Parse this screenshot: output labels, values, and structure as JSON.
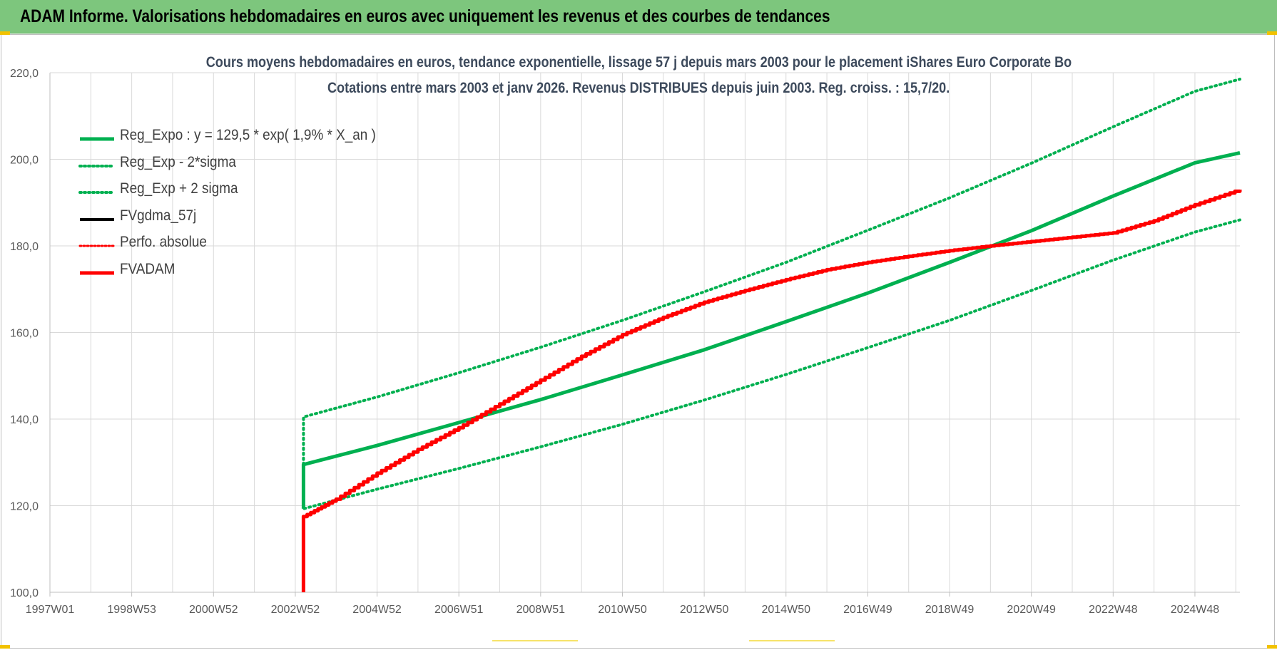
{
  "banner": {
    "title": "ADAM Informe. Valorisations hebdomadaires en euros avec uniquement les revenus et des courbes de tendances"
  },
  "chart_data": {
    "type": "line",
    "title": "Cours moyens hebdomadaires en euros, tendance exponentielle, lissage 57 j depuis mars 2003 pour le placement iShares Euro Corporate Bo",
    "subtitle": "Cotations entre mars 2003 et janv 2026. Revenus DISTRIBUES depuis juin 2003. Reg. croiss. : 15,7/20.",
    "xlabel": "",
    "ylabel": "",
    "ylim": [
      100,
      220
    ],
    "xlim": [
      1997.0,
      2026.1
    ],
    "y_ticks": [
      "100,0",
      "120,0",
      "140,0",
      "160,0",
      "180,0",
      "200,0",
      "220,0"
    ],
    "y_tick_values": [
      100,
      120,
      140,
      160,
      180,
      200,
      220
    ],
    "x_ticks": [
      "1997W01",
      "1998W53",
      "2000W52",
      "2002W52",
      "2004W52",
      "2006W51",
      "2008W51",
      "2010W50",
      "2012W50",
      "2014W50",
      "2016W49",
      "2018W49",
      "2020W49",
      "2022W48",
      "2024W48"
    ],
    "x_tick_values": [
      1997.0,
      1999.0,
      2001.0,
      2003.0,
      2005.0,
      2007.0,
      2009.0,
      2011.0,
      2013.0,
      2015.0,
      2017.0,
      2019.0,
      2021.0,
      2023.0,
      2025.0
    ],
    "grid": true,
    "legend_position": "top-left",
    "series": [
      {
        "name": "Reg_Expo : y = 129,5 * exp( 1,9% *  X_an )",
        "color": "#00b050",
        "style": "solid",
        "x": [
          2003.2,
          2005,
          2007,
          2009,
          2011,
          2013,
          2015,
          2017,
          2019,
          2021,
          2023,
          2025,
          2026.1
        ],
        "y": [
          129.5,
          133.9,
          139.2,
          144.5,
          150.2,
          156.0,
          162.5,
          169.1,
          176.2,
          183.5,
          191.5,
          199.2,
          201.5
        ]
      },
      {
        "name": "Reg_Exp - 2*sigma",
        "color": "#00b050",
        "style": "dotted",
        "x": [
          2003.2,
          2005,
          2007,
          2009,
          2011,
          2013,
          2015,
          2017,
          2019,
          2021,
          2023,
          2025,
          2026.1
        ],
        "y": [
          119.3,
          123.8,
          128.6,
          133.6,
          138.8,
          144.4,
          150.3,
          156.5,
          162.8,
          169.7,
          176.7,
          183.2,
          186.0
        ]
      },
      {
        "name": "Reg_Exp + 2 sigma",
        "color": "#00b050",
        "style": "dotted",
        "x": [
          2003.2,
          2005,
          2007,
          2009,
          2011,
          2013,
          2015,
          2017,
          2019,
          2021,
          2023,
          2025,
          2026.1
        ],
        "y": [
          140.5,
          145.1,
          150.7,
          156.6,
          162.8,
          169.4,
          176.2,
          183.6,
          191.1,
          199.1,
          207.5,
          215.7,
          218.5
        ]
      },
      {
        "name": "FVgdma_57j",
        "color": "#000000",
        "style": "solid",
        "x": [],
        "y": []
      },
      {
        "name": "Perfo. absolue",
        "color": "#ff0000",
        "style": "dotted",
        "x": [],
        "y": []
      },
      {
        "name": "FVADAM",
        "color": "#ff0000",
        "style": "solid",
        "x": [
          2003.2,
          2003.2,
          2004,
          2005,
          2006,
          2007,
          2008,
          2009,
          2010,
          2011,
          2012,
          2013,
          2014,
          2015,
          2016,
          2017,
          2018,
          2019,
          2020,
          2021,
          2022,
          2023,
          2024,
          2025,
          2026.1
        ],
        "y": [
          100.0,
          117.5,
          121.5,
          127.5,
          133.0,
          138.0,
          143.5,
          149.0,
          154.5,
          159.5,
          163.5,
          167.0,
          169.7,
          172.2,
          174.5,
          176.2,
          177.6,
          178.9,
          180.0,
          181.0,
          182.0,
          183.0,
          185.8,
          189.5,
          193.0
        ]
      }
    ]
  },
  "colors": {
    "banner": "#7dc67d",
    "accent": "#f2c200",
    "grid": "#d9d9d9"
  }
}
